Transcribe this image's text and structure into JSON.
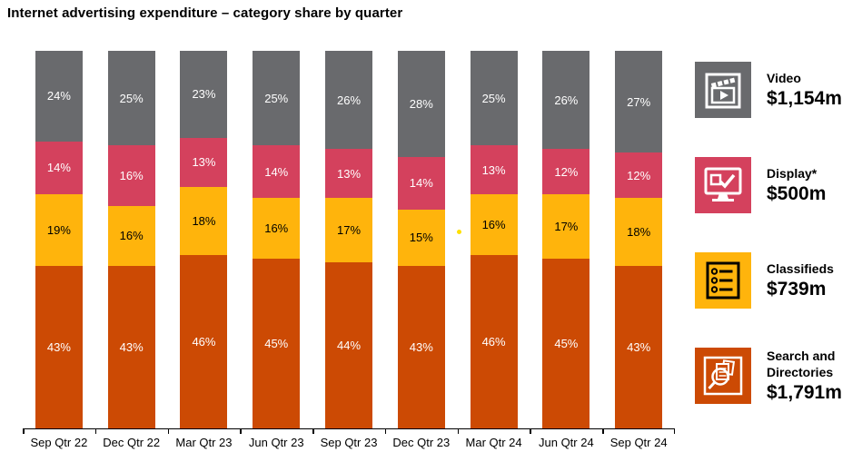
{
  "chart_data": {
    "type": "bar",
    "subtype": "stacked-percent",
    "title": "Internet advertising expenditure – category share by quarter",
    "unit": "%",
    "ylim": [
      0,
      100
    ],
    "grid": false,
    "categories": [
      "Sep Qtr 22",
      "Dec Qtr 22",
      "Mar Qtr 23",
      "Jun Qtr 23",
      "Sep Qtr 23",
      "Dec Qtr 23",
      "Mar Qtr 24",
      "Jun Qtr 24",
      "Sep Qtr 24"
    ],
    "series": [
      {
        "name": "Search and Directories",
        "color": "#cc4a04",
        "label_color": "#ffffff",
        "values": [
          43,
          43,
          46,
          45,
          44,
          43,
          46,
          45,
          43
        ]
      },
      {
        "name": "Classifieds",
        "color": "#ffb40c",
        "label_color": "#000000",
        "values": [
          19,
          16,
          18,
          16,
          17,
          15,
          16,
          17,
          18
        ]
      },
      {
        "name": "Display",
        "color": "#d4415d",
        "label_color": "#ffffff",
        "values": [
          14,
          16,
          13,
          14,
          13,
          14,
          13,
          12,
          12
        ]
      },
      {
        "name": "Video",
        "color": "#696a6d",
        "label_color": "#ffffff",
        "values": [
          24,
          25,
          23,
          25,
          26,
          28,
          25,
          26,
          27
        ]
      }
    ],
    "legend_position": "right"
  },
  "legend": {
    "items": [
      {
        "label": "Video",
        "value": "$1,154m",
        "color": "#696a6d",
        "icon": "video-clapperboard-icon"
      },
      {
        "label": "Display*",
        "value": "$500m",
        "color": "#d4415d",
        "icon": "display-monitor-icon"
      },
      {
        "label": "Classifieds",
        "value": "$739m",
        "color": "#ffb40c",
        "icon": "classifieds-list-icon"
      },
      {
        "label": "Search and Directories",
        "value": "$1,791m",
        "color": "#cc4a04",
        "icon": "search-documents-icon"
      }
    ]
  },
  "colors": {
    "axis": "#000000",
    "background": "#ffffff",
    "stray_dot": "#ffe000"
  }
}
